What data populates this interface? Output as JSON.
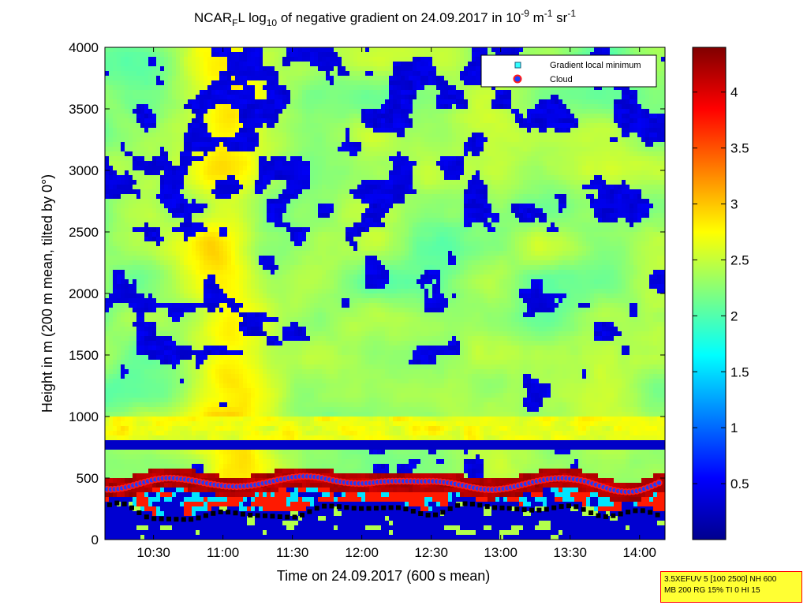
{
  "chart_data": {
    "type": "heatmap",
    "title": {
      "prefix": "NCAR",
      "prefix_sub": "F",
      "part2": "L log",
      "log_sub": "10",
      "part3": " of negative gradient on 24.09.2017 in 10",
      "exp1": "-9",
      "part4": " m",
      "exp2": "-1",
      "part5": " sr",
      "exp3": "-1"
    },
    "xlabel": "Time on 24.09.2017 (600 s mean)",
    "ylabel": "Height in m (200 m mean, tilted by 0°)",
    "x_range": [
      "10:09",
      "14:11"
    ],
    "x_ticks": [
      "10:30",
      "11:00",
      "11:30",
      "12:00",
      "12:30",
      "13:00",
      "13:30",
      "14:00"
    ],
    "ylim": [
      0,
      4000
    ],
    "y_ticks": [
      "0",
      "500",
      "1000",
      "1500",
      "2000",
      "2500",
      "3000",
      "3500",
      "4000"
    ],
    "colorbar": {
      "range": [
        0,
        4.4
      ],
      "ticks": [
        "0.5",
        "1",
        "1.5",
        "2",
        "2.5",
        "3",
        "3.5",
        "4"
      ],
      "colormap": "jet"
    },
    "legend": {
      "position": "top-right",
      "items": [
        {
          "label": "Gradient local minimum",
          "marker": "square",
          "color": "#33ffff"
        },
        {
          "label": "Cloud",
          "marker": "circle",
          "color": "#ff0000"
        }
      ]
    },
    "layers_height_m": {
      "top_dark_band": [
        700,
        850
      ],
      "aerosol_layer_min": 400,
      "aerosol_layer_max": 800,
      "noise_above_m": 2500
    }
  },
  "infobox": {
    "line1": "3.5XEFUV 5 [100 2500] NH 600",
    "line2": "MB 200 RG 15% TI 0 HI 15"
  }
}
